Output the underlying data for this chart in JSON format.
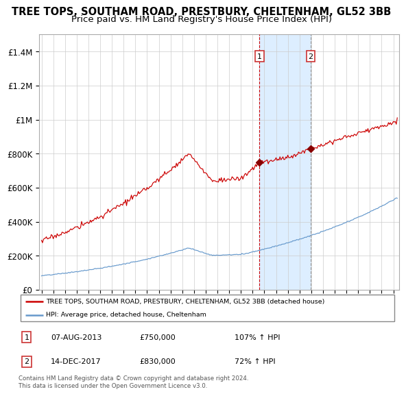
{
  "title": "TREE TOPS, SOUTHAM ROAD, PRESTBURY, CHELTENHAM, GL52 3BB",
  "subtitle": "Price paid vs. HM Land Registry's House Price Index (HPI)",
  "title_fontsize": 10.5,
  "subtitle_fontsize": 9.5,
  "ylim": [
    0,
    1500000
  ],
  "yticks": [
    0,
    200000,
    400000,
    600000,
    800000,
    1000000,
    1200000,
    1400000
  ],
  "ytick_labels": [
    "£0",
    "£200K",
    "£400K",
    "£600K",
    "£800K",
    "£1M",
    "£1.2M",
    "£1.4M"
  ],
  "line1_color": "#cc0000",
  "line2_color": "#6699cc",
  "marker_color": "#880000",
  "vline1_color": "#cc0000",
  "vline2_color": "#999999",
  "shade_color": "#ddeeff",
  "grid_color": "#cccccc",
  "sale1_date_num": 2013.59,
  "sale1_price": 750000,
  "sale2_date_num": 2017.95,
  "sale2_price": 830000,
  "legend_line1": "TREE TOPS, SOUTHAM ROAD, PRESTBURY, CHELTENHAM, GL52 3BB (detached house)",
  "legend_line2": "HPI: Average price, detached house, Cheltenham",
  "annotation1_date": "07-AUG-2013",
  "annotation1_price": "£750,000",
  "annotation1_hpi": "107% ↑ HPI",
  "annotation2_date": "14-DEC-2017",
  "annotation2_price": "£830,000",
  "annotation2_hpi": "72% ↑ HPI",
  "footer": "Contains HM Land Registry data © Crown copyright and database right 2024.\nThis data is licensed under the Open Government Licence v3.0.",
  "xlim_start": 1994.8,
  "xlim_end": 2025.5
}
